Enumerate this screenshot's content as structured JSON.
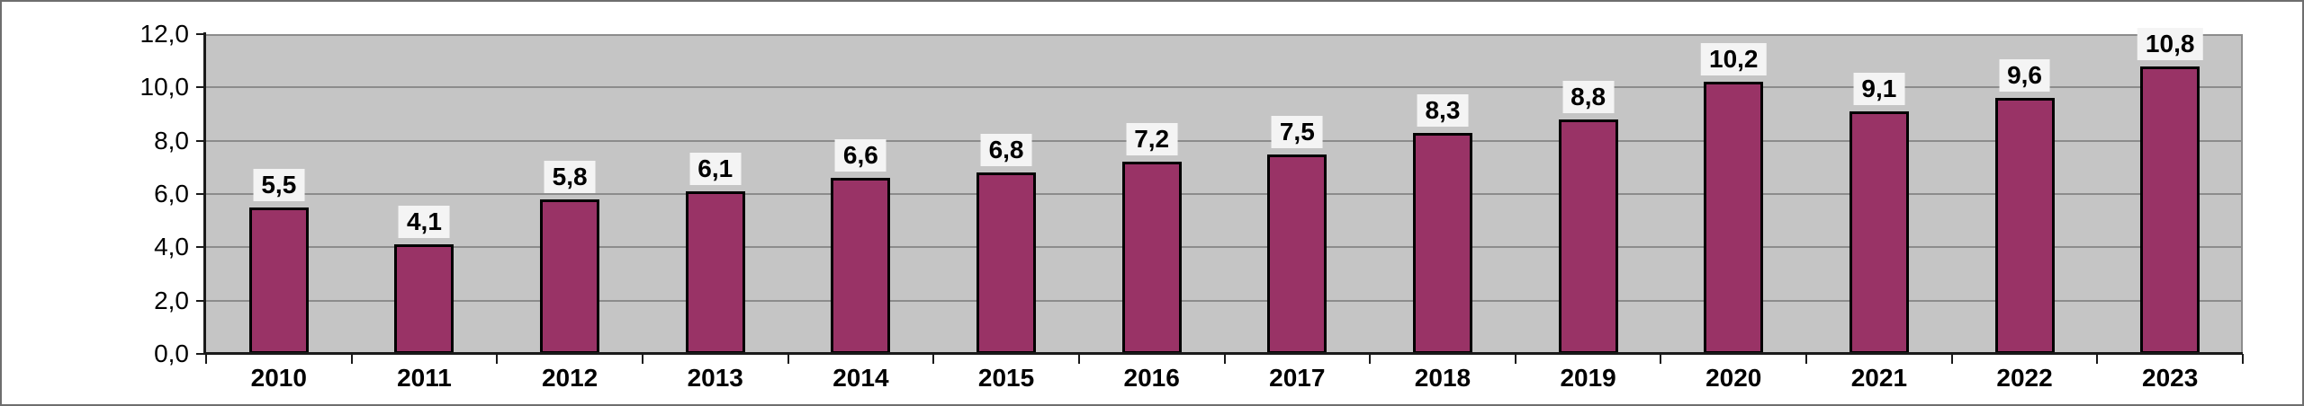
{
  "chart_data": {
    "type": "bar",
    "title": "",
    "xlabel": "",
    "ylabel": "",
    "categories": [
      "2010",
      "2011",
      "2012",
      "2013",
      "2014",
      "2015",
      "2016",
      "2017",
      "2018",
      "2019",
      "2020",
      "2021",
      "2022",
      "2023"
    ],
    "values": [
      5.5,
      4.1,
      5.8,
      6.1,
      6.6,
      6.8,
      7.2,
      7.5,
      8.3,
      8.8,
      10.2,
      9.1,
      9.6,
      10.8
    ],
    "value_labels": [
      "5,5",
      "4,1",
      "5,8",
      "6,1",
      "6,6",
      "6,8",
      "7,2",
      "7,5",
      "8,3",
      "8,8",
      "10,2",
      "9,1",
      "9,6",
      "10,8"
    ],
    "y_axis": {
      "min": 0,
      "max": 12,
      "step": 2,
      "tick_labels": [
        "0,0",
        "2,0",
        "4,0",
        "6,0",
        "8,0",
        "10,0",
        "12,0"
      ]
    },
    "ylim": [
      0,
      12
    ],
    "grid": true,
    "legend_position": "none",
    "colors": {
      "bar_fill": "#993366",
      "bar_border": "#000000",
      "plot_background": "#c5c5c5",
      "gridline": "#8c8c8c",
      "axis": "#1a1a1a",
      "value_label_background": "#f4f4f4",
      "page_background": "#ffffff",
      "text": "#000000"
    }
  }
}
